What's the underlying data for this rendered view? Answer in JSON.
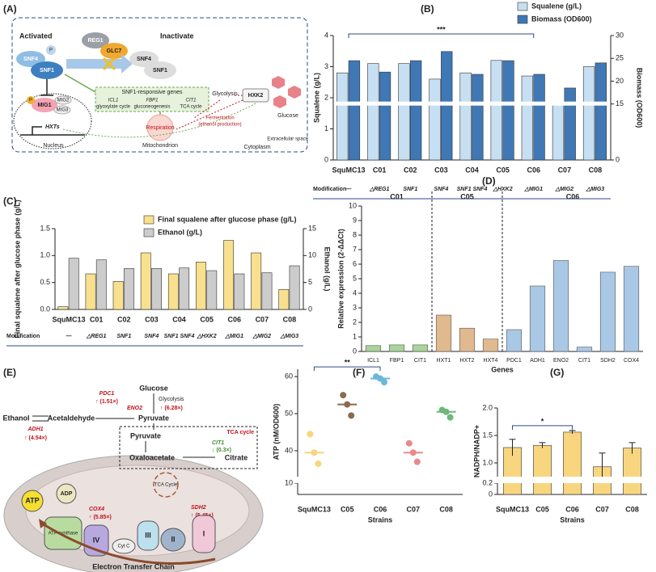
{
  "figure_a": {
    "panel": "(A)",
    "activated": "Activated",
    "inactivate": "Inactivate",
    "snf4": "SNF4",
    "p": "P",
    "snf1": "SNF1",
    "reg1": "REG1",
    "glc7": "GLC7",
    "snf4_b": "SNF4",
    "snf1_b": "SNF1",
    "responsive_genes": "SNF1-responsive genes",
    "icl1": "ICL1",
    "glyoxylate": "glyoxylate cycle",
    "fbp1": "FBP1",
    "gluconeogenesis": "gluconeogenesis",
    "cit1": "CIT1",
    "tca": "TCA cycle",
    "glycolysis": "Glycolysis",
    "fermentation": "Fermentation",
    "ethanol_production": "(ethanol production)",
    "hxk2": "HXK2",
    "glucose": "Glucose",
    "respiration": "Respiration",
    "mitochondrion": "Mitochondrion",
    "p_mig": "P",
    "mig1": "MIG1",
    "mig2": "MIG2",
    "mig3": "MIG3",
    "hxts": "HXTs",
    "nucleus": "Nucleus",
    "cytoplasm": "Cytoplasm",
    "extracellular": "Extracellular space"
  },
  "figure_e": {
    "panel": "(E)",
    "glucose": "Glucose",
    "glycolysis": "Glycolysis",
    "pyruvate": "Pyruvate",
    "pdc1": "PDC1",
    "pdc1_fold": "↑ (1.51×)",
    "eno2": "ENO2",
    "eno2_fold": "↑ (6.28×)",
    "ethanol": "Ethanol",
    "acetaldehyde": "Acetaldehyde",
    "adh1": "ADH1",
    "adh1_fold": "↑ (4.54×)",
    "pyruvate_mito": "Pyruvate",
    "tca_box": "TCA cycle",
    "cit1": "CIT1",
    "cit1_fold": "↓ (0.3×)",
    "oxaloacetate": "Oxaloacetate",
    "citrate": "Citrate",
    "tca_cycle": "TCA Cycle",
    "atp": "ATP",
    "adp": "ADP",
    "atp_synthase": "ATP synthase",
    "cox4": "COX4",
    "cox4_fold": "↑ (5.85×)",
    "sdh2": "SDH2",
    "sdh2_fold": "↑ (5.45×)",
    "iv": "IV",
    "cytc": "Cyt C",
    "iii": "III",
    "ii": "II",
    "i": "I",
    "etc": "Electron Transfer Chain"
  },
  "chart_data": [
    {
      "panel": "(B)",
      "type": "bar",
      "categories": [
        "SquMC13",
        "C01",
        "C02",
        "C03",
        "C04",
        "C05",
        "C06",
        "C07",
        "C08"
      ],
      "row_label": "Modification",
      "modifications": [
        "—",
        "△REG1",
        "SNF1",
        "SNF4",
        "SNF1 SNF4",
        "△HXK2",
        "△MIG1",
        "△MIG2",
        "△MIG3"
      ],
      "series": [
        {
          "name": "Squalene (g/L)",
          "color": "#c6dff2",
          "values": [
            2.8,
            3.1,
            3.1,
            2.6,
            2.8,
            3.2,
            2.7,
            1.8,
            3.0
          ]
        },
        {
          "name": "Biomass (OD600)",
          "color": "#3f78b5",
          "axis": "y2",
          "values": [
            24.5,
            22,
            24.5,
            26.5,
            21.5,
            24.5,
            21.5,
            18.5,
            24
          ]
        }
      ],
      "ylabel": "Squalene (g/L)",
      "y2label": "Biomass (OD600)",
      "ylim": [
        0,
        4
      ],
      "yticks": [
        0,
        1,
        2,
        3,
        4
      ],
      "y2lim": [
        0,
        30
      ],
      "y2ticks": [
        0,
        15,
        20,
        25,
        30
      ],
      "annotation": "***",
      "legend": "top-right"
    },
    {
      "panel": "(C)",
      "type": "bar",
      "categories": [
        "SquMC13",
        "C01",
        "C02",
        "C03",
        "C04",
        "C05",
        "C06",
        "C07",
        "C08"
      ],
      "row_label": "Modification",
      "modifications": [
        "—",
        "△REG1",
        "SNF1",
        "SNF4",
        "SNF1 SNF4",
        "△HXK2",
        "△MIG1",
        "△MIG2",
        "△MIG3"
      ],
      "series": [
        {
          "name": "Final squalene after glucose phase (g/L)",
          "color": "#f8e08e",
          "values": [
            0.05,
            0.66,
            0.52,
            1.05,
            0.66,
            0.88,
            1.28,
            1.05,
            0.37
          ]
        },
        {
          "name": "Ethanol (g/L)",
          "color": "#cccccc",
          "axis": "y2",
          "values": [
            9.5,
            9.2,
            7.6,
            7.6,
            7.7,
            7.2,
            6.6,
            6.8,
            8.1
          ]
        }
      ],
      "ylabel": "Final squalene after glucose phase (g/L)",
      "y2label": "Ethanol (g/L)",
      "ylim": [
        0,
        1.5
      ],
      "yticks": [
        {
          "value": 0,
          "label": "0.0"
        },
        0.5,
        {
          "value": 1,
          "label": "1.0"
        },
        1.5
      ],
      "y2lim": [
        0,
        15
      ],
      "y2ticks": [
        0,
        5,
        10,
        15
      ],
      "legend": "top-left"
    },
    {
      "panel": "(D)",
      "type": "bar",
      "groups": [
        {
          "name": "C01",
          "color": "#a9d49a",
          "categories": [
            "ICL1",
            "FBP1",
            "CIT1"
          ],
          "values": [
            0.4,
            0.45,
            0.45
          ]
        },
        {
          "name": "C05",
          "color": "#e1b98e",
          "categories": [
            "HXT1",
            "HXT2",
            "HXT4"
          ],
          "values": [
            2.5,
            1.6,
            0.85
          ]
        },
        {
          "name": "C06",
          "color": "#a9c8e6",
          "categories": [
            "PDC1",
            "ADH1",
            "ENO2",
            "CIT1",
            "SDH2",
            "COX4"
          ],
          "values": [
            1.5,
            4.5,
            6.25,
            0.3,
            5.45,
            5.85
          ]
        }
      ],
      "ylabel": "Relative expression (2-ΔΔCt)",
      "xlabel": "Genes",
      "ylim": [
        0,
        10
      ],
      "yticks": [
        0,
        1,
        2,
        3,
        4,
        5,
        6,
        7,
        8,
        9,
        10
      ]
    },
    {
      "panel": "(F)",
      "type": "strip",
      "categories": [
        "SquMC13",
        "C05",
        "C06",
        "C07",
        "C08"
      ],
      "colors": [
        "#f7d67a",
        "#8b6a4e",
        "#6ab7d8",
        "#e88a8a",
        "#6fb87a"
      ],
      "values": [
        [
          44.5,
          39.5,
          36.5
        ],
        [
          55,
          52.5,
          49.5
        ],
        [
          60,
          59.5,
          58.5
        ],
        [
          42,
          39.5,
          37
        ],
        [
          51,
          50.5,
          49
        ]
      ],
      "medians": [
        39.5,
        52.5,
        59.5,
        39.5,
        50.5
      ],
      "ylabel": "ATP (nM/OD600)",
      "xlabel": "Strains",
      "ylim": [
        0,
        62
      ],
      "yticks": [
        10,
        40,
        50,
        60
      ],
      "annotation": "**"
    },
    {
      "panel": "(G)",
      "type": "bar",
      "categories": [
        "SquMC13",
        "C05",
        "C06",
        "C07",
        "C08"
      ],
      "color": "#f8d680",
      "values": [
        1.28,
        1.32,
        1.56,
        0.93,
        1.27
      ],
      "errors": [
        0.15,
        0.05,
        0.03,
        0.25,
        0.1
      ],
      "ylabel": "NADPH/NADP+",
      "xlabel": "Strains",
      "ylim": [
        0,
        2
      ],
      "yticks": [
        0,
        0.2,
        {
          "value": 1,
          "label": "1.0"
        },
        1.5,
        {
          "value": 2,
          "label": "2.0"
        }
      ],
      "annotation": "*"
    }
  ]
}
